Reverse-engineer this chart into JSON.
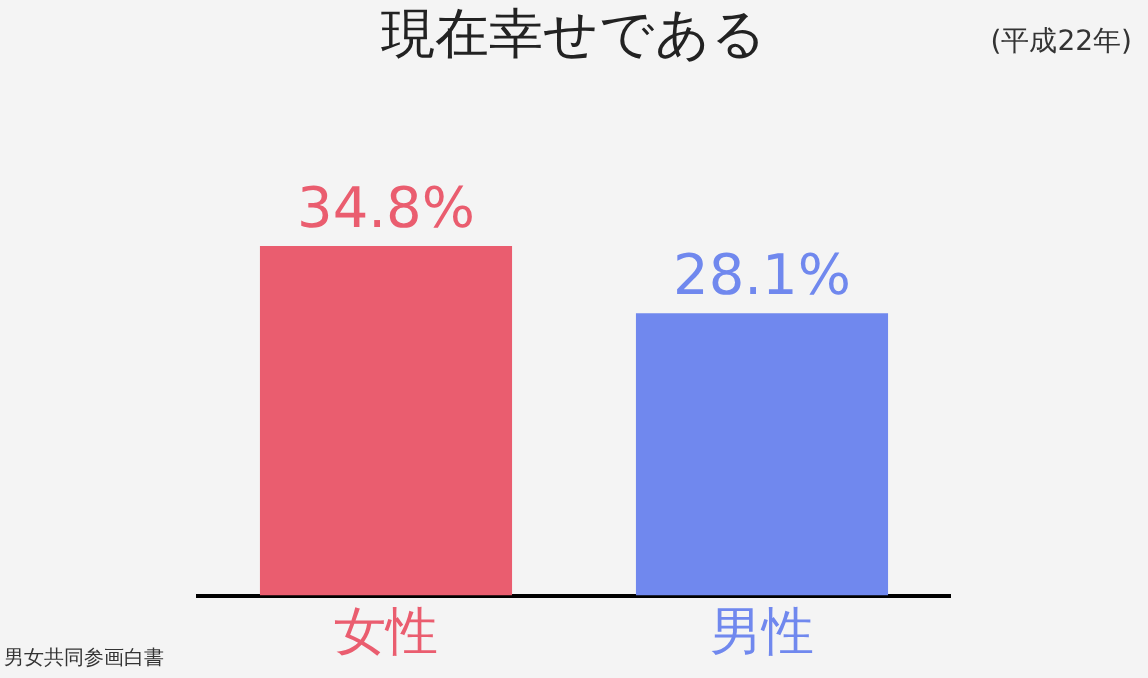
{
  "chart_data": {
    "type": "bar",
    "title": "現在幸せである",
    "subtitle": "(平成22年)",
    "categories": [
      "女性",
      "男性"
    ],
    "values": [
      34.8,
      28.1
    ],
    "colors": [
      "#ea5d6f",
      "#7088ee"
    ],
    "value_labels": [
      "34.8%",
      "28.1%"
    ],
    "annotations": [
      "男女共同参画白書"
    ],
    "legend": false,
    "grid": false
  }
}
